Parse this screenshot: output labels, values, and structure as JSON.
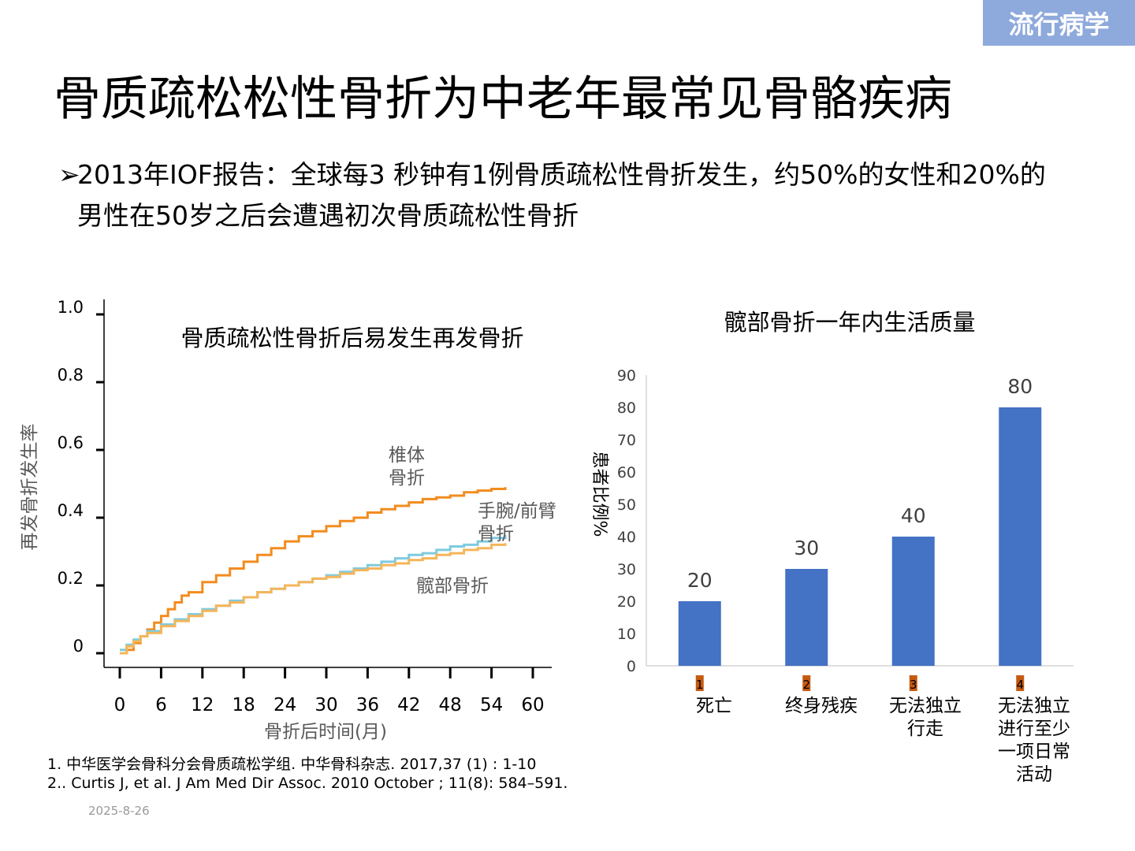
{
  "tag": "流行病学",
  "title": "骨质疏松松性骨折为中老年最常见骨骼疾病",
  "bullet": {
    "marker": "➢",
    "text": "2013年IOF报告：全球每3 秒钟有1例骨质疏松性骨折发生，约50%的女性和20%的男性在50岁之后会遭遇初次骨质疏松性骨折"
  },
  "chart_data": [
    {
      "type": "line",
      "title": "骨质疏松性骨折后易发生再发骨折",
      "xlabel": "骨折后时间(月)",
      "ylabel": "再发骨折发生率",
      "x_ticks": [
        0,
        6,
        12,
        18,
        24,
        30,
        36,
        42,
        48,
        54,
        60
      ],
      "y_ticks": [
        "0",
        "0.2",
        "0.4",
        "0.6",
        "0.8",
        "1.0"
      ],
      "xlim": [
        0,
        60
      ],
      "ylim": [
        0,
        1.0
      ],
      "series": [
        {
          "name": "椎体骨折",
          "label_lines": [
            "椎体",
            "骨折"
          ],
          "color": "#F28C1E",
          "x": [
            0,
            1,
            2,
            3,
            4,
            5,
            6,
            7,
            8,
            9,
            10,
            12,
            14,
            16,
            18,
            20,
            22,
            24,
            26,
            28,
            30,
            32,
            34,
            36,
            38,
            40,
            42,
            44,
            46,
            48,
            50,
            52,
            54,
            56
          ],
          "y": [
            0.0,
            0.01,
            0.03,
            0.05,
            0.07,
            0.09,
            0.11,
            0.13,
            0.15,
            0.17,
            0.18,
            0.21,
            0.23,
            0.25,
            0.27,
            0.29,
            0.31,
            0.33,
            0.345,
            0.36,
            0.375,
            0.39,
            0.4,
            0.415,
            0.425,
            0.435,
            0.445,
            0.455,
            0.46,
            0.465,
            0.475,
            0.48,
            0.485,
            0.49
          ]
        },
        {
          "name": "手腕/前臂骨折",
          "label_lines": [
            "手腕/前臂",
            "骨折"
          ],
          "color": "#7ECBE0",
          "x": [
            0,
            1,
            2,
            3,
            4,
            6,
            8,
            10,
            12,
            14,
            16,
            18,
            20,
            22,
            24,
            26,
            28,
            30,
            32,
            34,
            36,
            38,
            40,
            42,
            44,
            46,
            48,
            50,
            52,
            54,
            56
          ],
          "y": [
            0.01,
            0.025,
            0.04,
            0.05,
            0.065,
            0.085,
            0.1,
            0.115,
            0.13,
            0.14,
            0.155,
            0.165,
            0.18,
            0.19,
            0.2,
            0.21,
            0.22,
            0.23,
            0.24,
            0.25,
            0.26,
            0.27,
            0.28,
            0.29,
            0.295,
            0.305,
            0.315,
            0.32,
            0.33,
            0.34,
            0.35
          ]
        },
        {
          "name": "髋部骨折",
          "label_lines": [
            "髋部骨折"
          ],
          "color": "#F5B55A",
          "x": [
            0,
            1,
            2,
            3,
            4,
            6,
            8,
            10,
            12,
            14,
            16,
            18,
            20,
            22,
            24,
            26,
            28,
            30,
            32,
            34,
            36,
            38,
            40,
            42,
            44,
            46,
            48,
            50,
            52,
            54,
            56
          ],
          "y": [
            0.0,
            0.02,
            0.035,
            0.05,
            0.06,
            0.08,
            0.095,
            0.11,
            0.125,
            0.14,
            0.15,
            0.165,
            0.18,
            0.19,
            0.2,
            0.21,
            0.22,
            0.225,
            0.235,
            0.245,
            0.25,
            0.26,
            0.265,
            0.275,
            0.28,
            0.29,
            0.295,
            0.305,
            0.31,
            0.32,
            0.325
          ]
        }
      ]
    },
    {
      "type": "bar",
      "title": "髋部骨折一年内生活质量",
      "ylabel": "患者比例%",
      "ylim": [
        0,
        90
      ],
      "y_ticks": [
        "0",
        "10",
        "20",
        "30",
        "40",
        "50",
        "60",
        "70",
        "80",
        "90"
      ],
      "categories": [
        {
          "num": "1",
          "lines": [
            "死亡"
          ]
        },
        {
          "num": "2",
          "lines": [
            "终身残疾"
          ]
        },
        {
          "num": "3",
          "lines": [
            "无法独立",
            "行走"
          ]
        },
        {
          "num": "4",
          "lines": [
            "无法独立",
            "进行至少",
            "一项日常",
            "活动"
          ]
        }
      ],
      "values": [
        20,
        30,
        40,
        80
      ],
      "bar_color": "#4472C4",
      "badge_color": "#C55A11"
    }
  ],
  "references": [
    "1. 中华医学会骨科分会骨质疏松学组. 中华骨科杂志. 2017,37 (1) : 1-10",
    "2.. Curtis J, et al. J Am Med Dir Assoc. 2010 October ; 11(8): 584–591."
  ],
  "date": "2025-8-26"
}
